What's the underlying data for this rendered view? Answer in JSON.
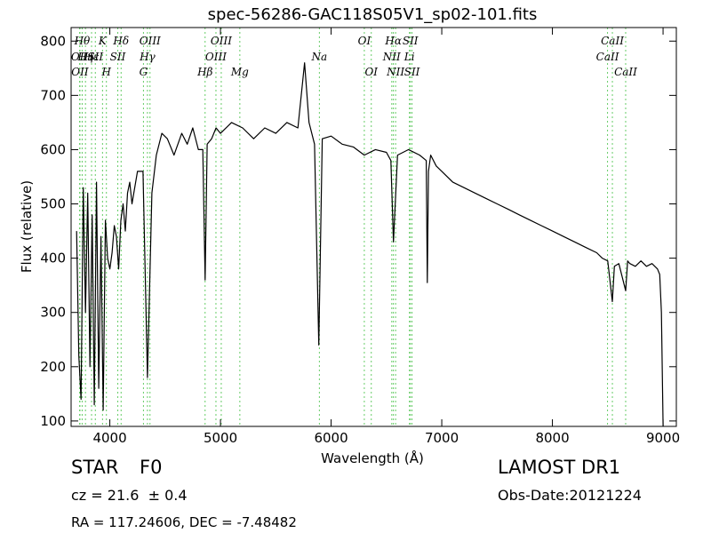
{
  "chart_data": {
    "type": "line",
    "title": "spec-56286-GAC118S05V1_sp02-101.fits",
    "xlabel": "Wavelength (Å)",
    "ylabel": "Flux (relative)",
    "xlim": [
      3650,
      9120
    ],
    "ylim": [
      90,
      825
    ],
    "xticks": [
      4000,
      5000,
      6000,
      7000,
      8000,
      9000
    ],
    "yticks": [
      100,
      200,
      300,
      400,
      500,
      600,
      700,
      800
    ],
    "grid": false,
    "series": [
      {
        "x": [
          3700,
          3720,
          3740,
          3760,
          3780,
          3800,
          3820,
          3840,
          3860,
          3880,
          3900,
          3920,
          3940,
          3960,
          3980,
          4000,
          4020,
          4040,
          4060,
          4080,
          4100,
          4120,
          4140,
          4160,
          4180,
          4200,
          4250,
          4300,
          4340,
          4380,
          4420,
          4470,
          4520,
          4580,
          4650,
          4700,
          4750,
          4800,
          4840,
          4861,
          4880,
          4920,
          4960,
          5000,
          5100,
          5200,
          5300,
          5400,
          5500,
          5600,
          5700,
          5760,
          5800,
          5850,
          5889,
          5920,
          6000,
          6100,
          6200,
          6300,
          6400,
          6500,
          6540,
          6563,
          6600,
          6700,
          6800,
          6860,
          6869,
          6880,
          6900,
          6950,
          7000,
          7100,
          7200,
          7300,
          7400,
          7500,
          7600,
          7700,
          7800,
          7900,
          8000,
          8100,
          8200,
          8300,
          8400,
          8450,
          8500,
          8542,
          8560,
          8600,
          8662,
          8680,
          8700,
          8750,
          8800,
          8850,
          8900,
          8950,
          8970,
          8985,
          9000
        ],
        "values": [
          450,
          220,
          140,
          530,
          300,
          520,
          200,
          480,
          130,
          540,
          160,
          440,
          120,
          470,
          400,
          380,
          410,
          460,
          440,
          380,
          470,
          500,
          450,
          520,
          540,
          500,
          560,
          560,
          180,
          520,
          590,
          630,
          620,
          590,
          630,
          610,
          640,
          600,
          600,
          360,
          610,
          620,
          640,
          630,
          650,
          640,
          620,
          640,
          630,
          650,
          640,
          760,
          650,
          610,
          240,
          620,
          625,
          610,
          605,
          590,
          600,
          595,
          580,
          430,
          590,
          600,
          590,
          580,
          355,
          560,
          590,
          570,
          560,
          540,
          530,
          520,
          510,
          500,
          490,
          480,
          470,
          460,
          450,
          440,
          430,
          420,
          410,
          400,
          395,
          320,
          385,
          390,
          340,
          395,
          390,
          385,
          395,
          385,
          390,
          380,
          370,
          300,
          90
        ]
      }
    ],
    "lines": [
      {
        "x": 3727,
        "label": "OII",
        "row": 2
      },
      {
        "x": 3730,
        "label": "OII",
        "row": 3
      },
      {
        "x": 3750,
        "label": "Hθ",
        "row": 1
      },
      {
        "x": 3780,
        "label": "Hη",
        "row": 2
      },
      {
        "x": 3835,
        "label": "Hε",
        "row": 2
      },
      {
        "x": 3869,
        "label": "SII",
        "row": 2
      },
      {
        "x": 3934,
        "label": "K",
        "row": 1
      },
      {
        "x": 3969,
        "label": "H",
        "row": 3
      },
      {
        "x": 4102,
        "label": "Hδ",
        "row": 1
      },
      {
        "x": 4072,
        "label": "SII",
        "row": 2
      },
      {
        "x": 4304,
        "label": "G",
        "row": 3
      },
      {
        "x": 4340,
        "label": "Hγ",
        "row": 2
      },
      {
        "x": 4363,
        "label": "OIII",
        "row": 1
      },
      {
        "x": 4861,
        "label": "Hβ",
        "row": 3
      },
      {
        "x": 4959,
        "label": "OIII",
        "row": 2
      },
      {
        "x": 5007,
        "label": "OIII",
        "row": 1
      },
      {
        "x": 5175,
        "label": "Mg",
        "row": 3
      },
      {
        "x": 5894,
        "label": "Na",
        "row": 2
      },
      {
        "x": 6300,
        "label": "OI",
        "row": 1
      },
      {
        "x": 6363,
        "label": "OI",
        "row": 3
      },
      {
        "x": 6548,
        "label": "NII",
        "row": 2
      },
      {
        "x": 6563,
        "label": "Hα",
        "row": 1
      },
      {
        "x": 6583,
        "label": "NII",
        "row": 3
      },
      {
        "x": 6708,
        "label": "Li",
        "row": 2
      },
      {
        "x": 6716,
        "label": "SII",
        "row": 1
      },
      {
        "x": 6731,
        "label": "SII",
        "row": 3
      },
      {
        "x": 8498,
        "label": "CaII",
        "row": 2
      },
      {
        "x": 8542,
        "label": "CaII",
        "row": 1
      },
      {
        "x": 8662,
        "label": "CaII",
        "row": 3
      }
    ]
  },
  "info": {
    "class_type": "STAR",
    "subclass": "F0",
    "cz": "cz = 21.6  ± 0.4",
    "radec": "RA = 117.24606, DEC = -7.48482",
    "survey": "LAMOST DR1",
    "obsdate": "Obs-Date:20121224"
  },
  "colors": {
    "spectrum": "#000000",
    "line_marker": "#66cc66",
    "frame": "#000000",
    "background": "#ffffff"
  }
}
